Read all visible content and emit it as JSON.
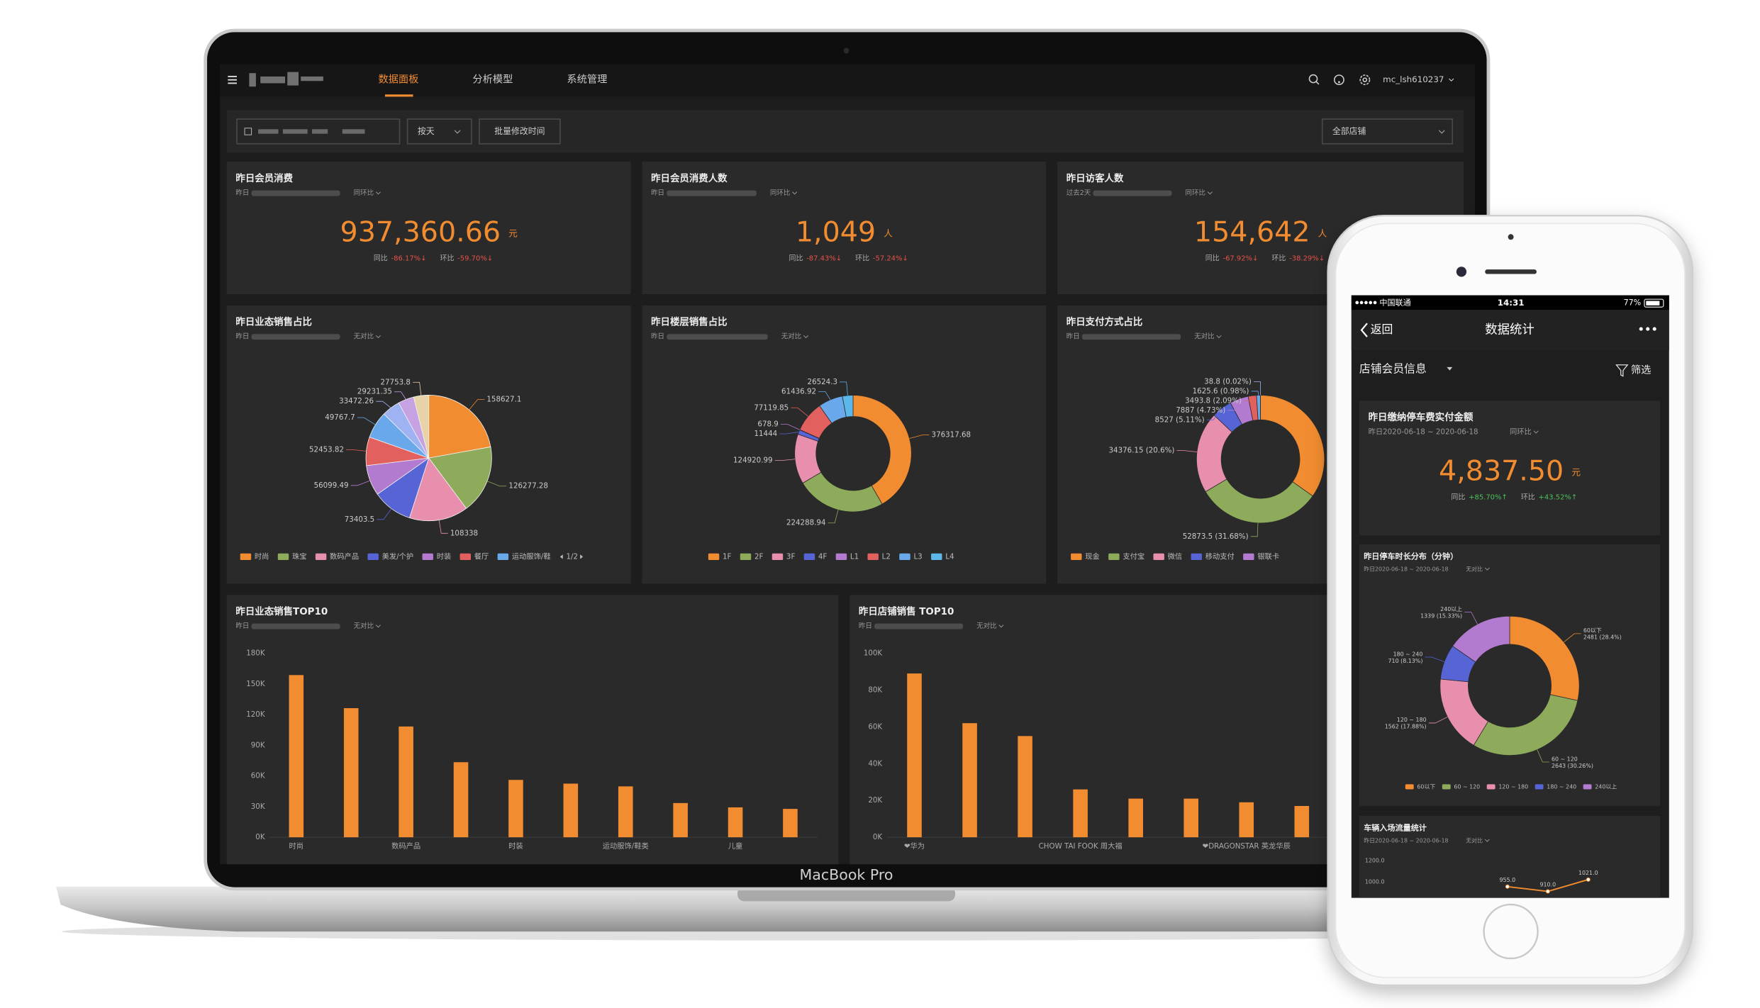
{
  "device_label": "MacBook Pro",
  "nav": {
    "tabs": [
      "数据面板",
      "分析模型",
      "系统管理"
    ],
    "user": "mc_lsh610237"
  },
  "toolbar": {
    "granularity": "按天",
    "batch_edit": "批量修改时间",
    "store": "全部店铺"
  },
  "kpis": [
    {
      "title": "昨日会员消费",
      "prefix": "昨日",
      "compare": "同环比",
      "value": "937,360.66",
      "unit": "元",
      "yoy_label": "同比",
      "yoy": "-86.17%↓",
      "mom_label": "环比",
      "mom": "-59.70%↓",
      "change_color": "#e8514a"
    },
    {
      "title": "昨日会员消费人数",
      "prefix": "昨日",
      "compare": "同环比",
      "value": "1,049",
      "unit": "人",
      "yoy_label": "同比",
      "yoy": "-87.43%↓",
      "mom_label": "环比",
      "mom": "-57.24%↓",
      "change_color": "#e8514a"
    },
    {
      "title": "昨日访客人数",
      "prefix": "过去2天",
      "compare": "同环比",
      "value": "154,642",
      "unit": "人",
      "yoy_label": "同比",
      "yoy": "-67.92%↓",
      "mom_label": "环比",
      "mom": "-38.29%↓",
      "change_color": "#e8514a"
    }
  ],
  "chart_data": [
    {
      "type": "pie",
      "title": "昨日业态销售占比",
      "prefix": "昨日",
      "compare": "无对比",
      "categories": [
        "时尚",
        "珠宝",
        "数码产品",
        "美发/个护",
        "时装",
        "餐厅",
        "运动服饰/鞋",
        null,
        null,
        null
      ],
      "values": [
        158627.1,
        126277.28,
        108338,
        73403.5,
        56099.49,
        52453.82,
        49767.7,
        33472.26,
        29231.35,
        27753.8
      ],
      "colors": [
        "#f28c30",
        "#8dab5a",
        "#e98fae",
        "#5664d6",
        "#b27bd0",
        "#e2605d",
        "#6aa8ec",
        "#9fb3f2",
        "#c7a2e3",
        "#e8d3a8"
      ],
      "legend_page": "1/2"
    },
    {
      "type": "donut",
      "title": "昨日楼层销售占比",
      "prefix": "昨日",
      "compare": "无对比",
      "categories": [
        "1F",
        "2F",
        "3F",
        "4F",
        "L1",
        "L2",
        "L3",
        "L4"
      ],
      "values": [
        376317.68,
        224288.94,
        124920.99,
        11444,
        678.9,
        77119.85,
        61436.92,
        26524.3
      ],
      "colors": [
        "#f28c30",
        "#8dab5a",
        "#e98fae",
        "#5664d6",
        "#b27bd0",
        "#e2605d",
        "#6aa8ec",
        "#5bb8e8"
      ]
    },
    {
      "type": "donut",
      "title": "昨日支付方式占比",
      "prefix": "昨日",
      "compare": "无对比",
      "categories": [
        "现金",
        "支付宝",
        "微信",
        "移动支付",
        "银联卡",
        null,
        null,
        null
      ],
      "values": [
        58070,
        52873.5,
        34376.15,
        8527,
        7887,
        3493.8,
        1625.6,
        38.8
      ],
      "value_labels": [
        null,
        "52873.5 (31.68%)",
        "34376.15 (20.6%)",
        "8527 (5.11%)",
        "7887 (4.73%)",
        "3493.8 (2.09%)",
        "1625.6 (0.98%)",
        "38.8 (0.02%)"
      ],
      "colors": [
        "#f28c30",
        "#8dab5a",
        "#e98fae",
        "#5664d6",
        "#b27bd0",
        "#e2605d",
        "#6aa8ec",
        "#9fb3f2"
      ]
    },
    {
      "type": "bar",
      "title": "昨日业态销售TOP10",
      "prefix": "昨日",
      "compare": "无对比",
      "categories": [
        "时尚",
        null,
        "数码产品",
        null,
        "时装",
        null,
        "运动服饰/鞋类",
        null,
        "儿童",
        null
      ],
      "values": [
        158627.1,
        126277.28,
        108338,
        73403.5,
        56099.49,
        52453.82,
        49767.7,
        33472.26,
        29231.35,
        27753.8
      ],
      "color": "#f28c30",
      "ylim": [
        0,
        180000
      ],
      "yticks": [
        {
          "value": 0,
          "label": "0K"
        },
        {
          "value": 30000,
          "label": "30K"
        },
        {
          "value": 60000,
          "label": "60K"
        },
        {
          "value": 90000,
          "label": "90K"
        },
        {
          "value": 120000,
          "label": "120K"
        },
        {
          "value": 150000,
          "label": "150K"
        },
        {
          "value": 180000,
          "label": "180K"
        }
      ]
    },
    {
      "type": "bar",
      "title": "昨日店铺销售 TOP10",
      "prefix": "昨日",
      "compare": "无对比",
      "categories": [
        "❤华为",
        null,
        null,
        "CHOW TAI FOOK 周大福",
        null,
        null,
        "❤DRAGONSTAR 英龙华辰",
        null
      ],
      "values": [
        89000,
        62000,
        55000,
        26000,
        21000,
        21000,
        19000,
        17000
      ],
      "color": "#f28c30",
      "ylim": [
        0,
        100000
      ],
      "yticks": [
        {
          "value": 0,
          "label": "0K"
        },
        {
          "value": 20000,
          "label": "20K"
        },
        {
          "value": 40000,
          "label": "40K"
        },
        {
          "value": 60000,
          "label": "60K"
        },
        {
          "value": 80000,
          "label": "80K"
        },
        {
          "value": 100000,
          "label": "100K"
        }
      ]
    },
    {
      "type": "donut",
      "title": "昨日停车时长分布（分钟）",
      "prefix": "昨日2020-06-18 ~ 2020-06-18",
      "compare": "无对比",
      "categories": [
        "60以下",
        "60 ~ 120",
        "120 ~ 180",
        "180 ~ 240",
        "240以上"
      ],
      "values": [
        2481,
        2643,
        1562,
        710,
        1339
      ],
      "value_labels": [
        "2481 (28.4%)",
        "2643 (30.26%)",
        "1562 (17.88%)",
        "710 (8.13%)",
        "1339 (15.33%)"
      ],
      "colors": [
        "#f28c30",
        "#8dab5a",
        "#e98fae",
        "#5664d6",
        "#b27bd0"
      ]
    },
    {
      "type": "line",
      "title": "车辆入场流量统计",
      "prefix": "昨日2020-06-18 ~ 2020-06-18",
      "compare": "无对比",
      "categories": [
        null,
        null,
        null
      ],
      "values": [
        955,
        910,
        1021
      ],
      "value_labels": [
        "955.0",
        "910.0",
        "1021.0"
      ],
      "color": "#f28c30",
      "ylim": [
        850,
        1270
      ],
      "yticks": [
        {
          "value": 1000,
          "label": "1000.0"
        },
        {
          "value": 1200,
          "label": "1200.0"
        }
      ]
    }
  ],
  "phone": {
    "carrier": "中国联通",
    "time": "14:31",
    "battery": "77%",
    "back": "返回",
    "title": "数据统计",
    "section": "店铺会员信息",
    "filter": "筛选",
    "kpi": {
      "title": "昨日缴纳停车费实付金额",
      "prefix": "昨日2020-06-18 ~ 2020-06-18",
      "compare": "同环比",
      "value": "4,837.50",
      "unit": "元",
      "yoy_label": "同比",
      "yoy": "+85.70%↑",
      "mom_label": "环比",
      "mom": "+43.52%↑",
      "change_color": "#4cc15b"
    }
  }
}
